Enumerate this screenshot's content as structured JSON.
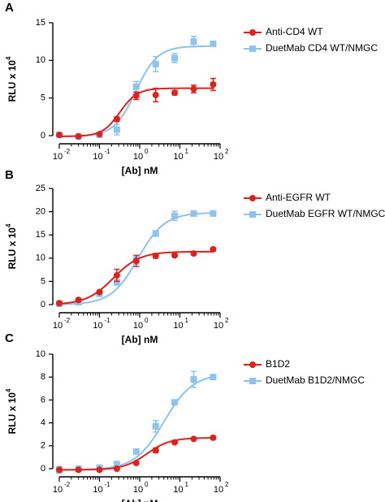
{
  "colors": {
    "red": "#e0201b",
    "blue": "#8ec2f0",
    "axis": "#000000"
  },
  "chart_data": [
    {
      "panel": "A",
      "type": "scatter",
      "xscale": "log",
      "xlim": [
        0.01,
        100
      ],
      "ylim": [
        0,
        15
      ],
      "xticks": [
        "10",
        "10",
        "10",
        "10",
        "10"
      ],
      "xtick_exponents": [
        "-2",
        "-1",
        "0",
        "1",
        "2"
      ],
      "yticks": [
        "0",
        "5",
        "10",
        "15"
      ],
      "xlabel": "[Ab] nM",
      "ylabel": "RLU x 10",
      "ylabel_exp": "4",
      "legend_position": "top-right",
      "series": [
        {
          "name": "Anti-CD4 WT",
          "color": "#e0201b",
          "marker": "circle",
          "x": [
            0.01,
            0.03,
            0.1,
            0.27,
            0.82,
            2.5,
            7.4,
            22,
            67
          ],
          "y": [
            0.1,
            -0.1,
            0.2,
            2.2,
            5.3,
            5.4,
            5.7,
            6.2,
            6.8
          ],
          "err": [
            0.1,
            0.1,
            0.1,
            0.3,
            0.5,
            0.9,
            0.3,
            0.5,
            0.8
          ],
          "fit": {
            "bottom": -0.1,
            "top": 6.3,
            "ec50": 0.32,
            "hill": 2.0
          }
        },
        {
          "name": "DuetMab CD4 WT/NMGC",
          "color": "#8ec2f0",
          "marker": "square",
          "x": [
            0.01,
            0.03,
            0.1,
            0.27,
            0.82,
            2.5,
            7.4,
            22,
            67
          ],
          "y": [
            0.1,
            -0.1,
            0.1,
            0.8,
            6.5,
            9.5,
            10.3,
            12.5,
            12.2
          ],
          "err": [
            0.3,
            0.2,
            0.1,
            0.7,
            0.7,
            1.0,
            0.6,
            0.7,
            0.3
          ],
          "fit": {
            "bottom": -0.1,
            "top": 11.9,
            "ec50": 0.8,
            "hill": 1.6
          }
        }
      ]
    },
    {
      "panel": "B",
      "type": "scatter",
      "xscale": "log",
      "xlim": [
        0.01,
        100
      ],
      "ylim": [
        0,
        25
      ],
      "xticks": [
        "10",
        "10",
        "10",
        "10",
        "10"
      ],
      "xtick_exponents": [
        "-2",
        "-1",
        "0",
        "1",
        "2"
      ],
      "yticks": [
        "0",
        "5",
        "10",
        "15",
        "20",
        "25"
      ],
      "xlabel": "[Ab] nM",
      "ylabel": "RLU x 10",
      "ylabel_exp": "4",
      "legend_position": "top-right",
      "series": [
        {
          "name": "Anti-EGFR WT",
          "color": "#e0201b",
          "marker": "circle",
          "x": [
            0.01,
            0.03,
            0.1,
            0.27,
            0.82,
            2.5,
            7.4,
            22,
            67
          ],
          "y": [
            0.3,
            1.0,
            2.7,
            6.3,
            9.4,
            10.5,
            10.6,
            11.0,
            11.9
          ],
          "err": [
            0.2,
            0.3,
            0.3,
            1.3,
            1.2,
            0.5,
            0.3,
            0.3,
            0.3
          ],
          "fit": {
            "bottom": 0.0,
            "top": 11.4,
            "ec50": 0.22,
            "hill": 1.3
          }
        },
        {
          "name": "DuetMab EGFR WT/NMGC",
          "color": "#8ec2f0",
          "marker": "square",
          "x": [
            0.01,
            0.03,
            0.1,
            0.27,
            0.82,
            2.5,
            7.4,
            22,
            67
          ],
          "y": [
            0.2,
            0.5,
            2.3,
            4.8,
            9.5,
            15.3,
            19.1,
            19.6,
            19.6
          ],
          "err": [
            0.2,
            0.3,
            0.3,
            0.6,
            0.8,
            0.6,
            1.0,
            0.4,
            0.4
          ],
          "fit": {
            "bottom": 0.0,
            "top": 19.8,
            "ec50": 0.9,
            "hill": 1.3
          }
        }
      ]
    },
    {
      "panel": "C",
      "type": "scatter",
      "xscale": "log",
      "xlim": [
        0.01,
        100
      ],
      "ylim": [
        0,
        10
      ],
      "xticks": [
        "10",
        "10",
        "10",
        "10",
        "10"
      ],
      "xtick_exponents": [
        "-2",
        "-1",
        "0",
        "1",
        "2"
      ],
      "yticks": [
        "0",
        "2",
        "4",
        "6",
        "8",
        "10"
      ],
      "xlabel": "[Ab] nM",
      "ylabel": "RLU x 10",
      "ylabel_exp": "4",
      "legend_position": "top-right",
      "series": [
        {
          "name": "B1D2",
          "color": "#e0201b",
          "marker": "circle",
          "x": [
            0.01,
            0.03,
            0.1,
            0.27,
            0.82,
            2.5,
            7.4,
            22,
            67
          ],
          "y": [
            -0.1,
            -0.1,
            -0.1,
            0.0,
            0.5,
            1.6,
            2.3,
            2.6,
            2.7
          ],
          "err": [
            0.1,
            0.1,
            0.1,
            0.1,
            0.1,
            0.2,
            0.1,
            0.1,
            0.1
          ],
          "fit": {
            "bottom": -0.1,
            "top": 2.7,
            "ec50": 1.5,
            "hill": 1.5
          }
        },
        {
          "name": "DuetMab B1D2/NMGC",
          "color": "#8ec2f0",
          "marker": "square",
          "x": [
            0.01,
            0.03,
            0.1,
            0.27,
            0.82,
            2.5,
            7.4,
            22,
            67
          ],
          "y": [
            -0.1,
            0.0,
            0.1,
            0.4,
            1.5,
            3.7,
            5.8,
            7.8,
            8.0
          ],
          "err": [
            0.3,
            0.2,
            0.2,
            0.2,
            0.2,
            0.5,
            0.2,
            0.7,
            0.2
          ],
          "fit": {
            "bottom": -0.1,
            "top": 8.3,
            "ec50": 4.0,
            "hill": 1.2
          }
        }
      ]
    }
  ]
}
